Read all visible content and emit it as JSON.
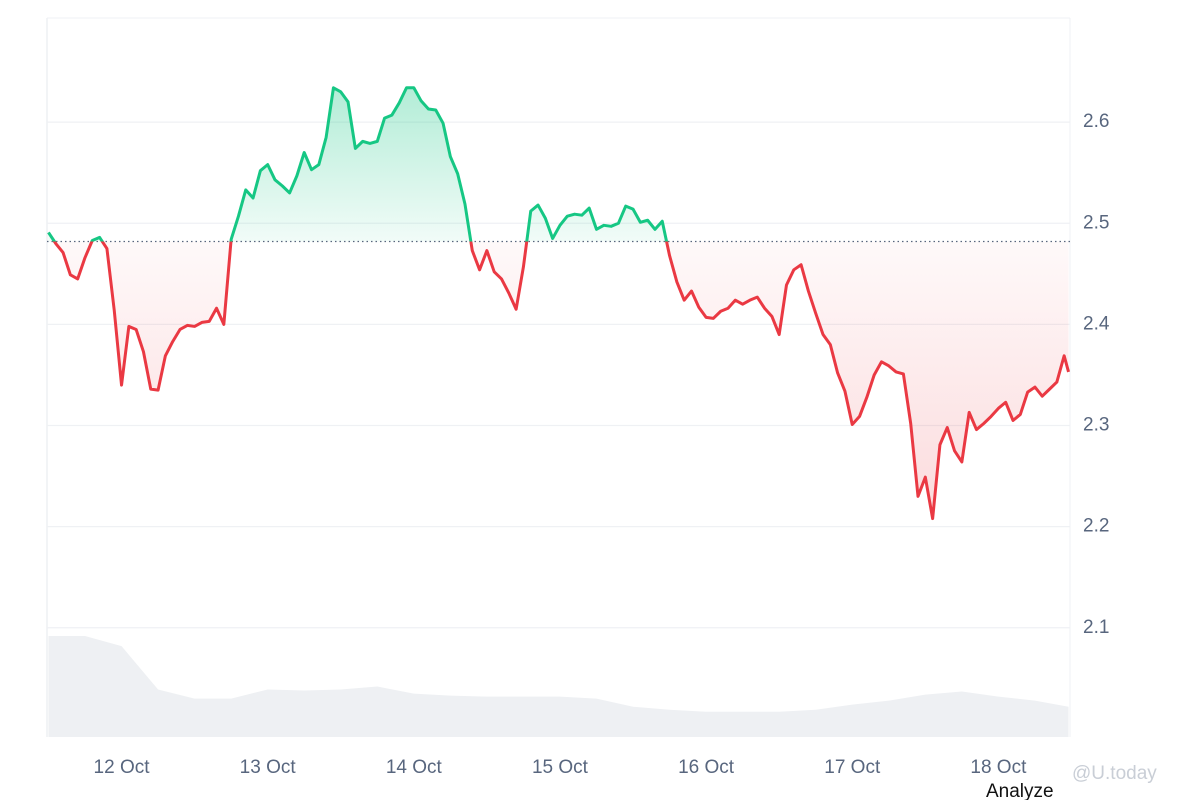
{
  "chart_data": {
    "type": "line",
    "x": [
      11.5,
      11.55,
      11.6,
      11.65,
      11.7,
      11.75,
      11.8,
      11.85,
      11.9,
      11.95,
      12,
      12.05,
      12.1,
      12.15,
      12.2,
      12.25,
      12.3,
      12.35,
      12.4,
      12.45,
      12.5,
      12.55,
      12.6,
      12.65,
      12.7,
      12.75,
      12.8,
      12.85,
      12.9,
      12.95,
      13,
      13.05,
      13.1,
      13.15,
      13.2,
      13.25,
      13.3,
      13.35,
      13.4,
      13.45,
      13.5,
      13.55,
      13.6,
      13.65,
      13.7,
      13.75,
      13.8,
      13.85,
      13.9,
      13.95,
      14,
      14.05,
      14.1,
      14.15,
      14.2,
      14.25,
      14.3,
      14.35,
      14.4,
      14.45,
      14.5,
      14.55,
      14.6,
      14.65,
      14.7,
      14.75,
      14.8,
      14.85,
      14.9,
      14.95,
      15,
      15.05,
      15.1,
      15.15,
      15.2,
      15.25,
      15.3,
      15.35,
      15.4,
      15.45,
      15.5,
      15.55,
      15.6,
      15.65,
      15.7,
      15.75,
      15.8,
      15.85,
      15.9,
      15.95,
      16,
      16.05,
      16.1,
      16.15,
      16.2,
      16.25,
      16.3,
      16.35,
      16.4,
      16.45,
      16.5,
      16.55,
      16.6,
      16.65,
      16.7,
      16.75,
      16.8,
      16.85,
      16.9,
      16.95,
      17,
      17.05,
      17.1,
      17.15,
      17.2,
      17.25,
      17.3,
      17.35,
      17.4,
      17.45,
      17.5,
      17.55,
      17.6,
      17.65,
      17.7,
      17.75,
      17.8,
      17.85,
      17.9,
      17.95,
      18,
      18.05,
      18.1,
      18.15,
      18.2,
      18.25,
      18.3,
      18.35,
      18.4,
      18.45,
      18.48
    ],
    "values": [
      2.491,
      2.48,
      2.471,
      2.449,
      2.445,
      2.466,
      2.483,
      2.486,
      2.475,
      2.414,
      2.34,
      2.398,
      2.395,
      2.373,
      2.336,
      2.335,
      2.369,
      2.383,
      2.395,
      2.399,
      2.398,
      2.402,
      2.403,
      2.416,
      2.4,
      2.484,
      2.507,
      2.533,
      2.525,
      2.552,
      2.558,
      2.543,
      2.537,
      2.53,
      2.547,
      2.57,
      2.553,
      2.558,
      2.585,
      2.634,
      2.63,
      2.62,
      2.574,
      2.581,
      2.579,
      2.581,
      2.604,
      2.607,
      2.619,
      2.634,
      2.634,
      2.621,
      2.613,
      2.612,
      2.599,
      2.566,
      2.549,
      2.519,
      2.473,
      2.454,
      2.473,
      2.452,
      2.445,
      2.431,
      2.415,
      2.457,
      2.512,
      2.518,
      2.505,
      2.485,
      2.498,
      2.507,
      2.509,
      2.508,
      2.515,
      2.494,
      2.498,
      2.497,
      2.5,
      2.517,
      2.514,
      2.501,
      2.503,
      2.494,
      2.502,
      2.468,
      2.442,
      2.424,
      2.433,
      2.417,
      2.407,
      2.406,
      2.413,
      2.416,
      2.424,
      2.42,
      2.424,
      2.427,
      2.416,
      2.408,
      2.39,
      2.439,
      2.454,
      2.459,
      2.433,
      2.411,
      2.39,
      2.38,
      2.352,
      2.334,
      2.301,
      2.309,
      2.328,
      2.35,
      2.363,
      2.359,
      2.353,
      2.351,
      2.302,
      2.23,
      2.249,
      2.208,
      2.281,
      2.298,
      2.275,
      2.264,
      2.313,
      2.296,
      2.302,
      2.309,
      2.317,
      2.323,
      2.305,
      2.311,
      2.333,
      2.338,
      2.329,
      2.336,
      2.343,
      2.369,
      2.353
    ],
    "baseline": 2.482,
    "up_color": "#16c784",
    "down_color": "#ea3943",
    "volume": {
      "x": [
        11.5,
        11.75,
        12,
        12.25,
        12.5,
        12.75,
        13,
        13.25,
        13.5,
        13.75,
        14,
        14.25,
        14.5,
        14.75,
        15,
        15.25,
        15.5,
        15.75,
        16,
        16.25,
        16.5,
        16.75,
        17,
        17.25,
        17.5,
        17.75,
        18,
        18.25,
        18.48
      ],
      "values": [
        100,
        100,
        90,
        47,
        38,
        38,
        47,
        46,
        47,
        50,
        43,
        41,
        40,
        40,
        40,
        38,
        30,
        27,
        25,
        25,
        25,
        27,
        32,
        36,
        42,
        45,
        40,
        36,
        30
      ],
      "vlim": [
        0,
        100
      ],
      "color": "#eef0f3"
    },
    "xlim": [
      11.49,
      18.49
    ],
    "xticks": [
      {
        "value": 12,
        "label": "12 Oct"
      },
      {
        "value": 13,
        "label": "13 Oct"
      },
      {
        "value": 14,
        "label": "14 Oct"
      },
      {
        "value": 15,
        "label": "15 Oct"
      },
      {
        "value": 16,
        "label": "16 Oct"
      },
      {
        "value": 17,
        "label": "17 Oct"
      },
      {
        "value": 18,
        "label": "18 Oct"
      }
    ],
    "ylim": [
      1.992,
      2.703
    ],
    "yticks": [
      2.1,
      2.2,
      2.3,
      2.4,
      2.5,
      2.6
    ],
    "grid": true,
    "watermark": "@U.today",
    "analyze_label": "Analyze"
  }
}
